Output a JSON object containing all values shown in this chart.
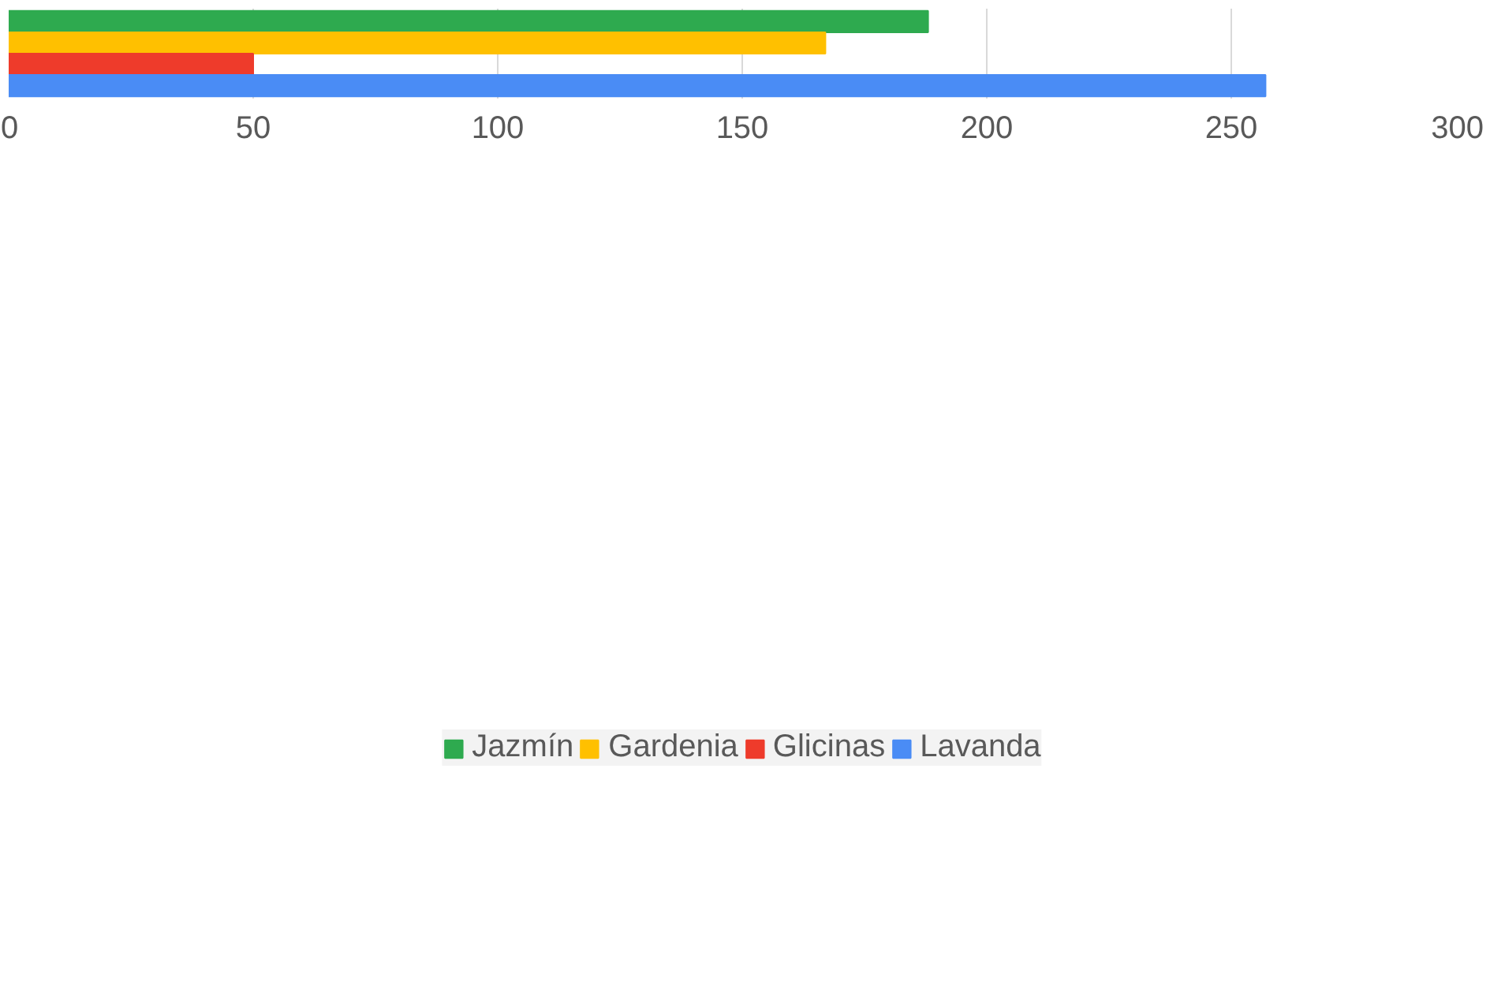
{
  "chart_data": {
    "type": "bar",
    "orientation": "horizontal",
    "categories": [
      null
    ],
    "series": [
      {
        "name": "Jazmín",
        "color": "#2eaa4f",
        "values": [
          188
        ]
      },
      {
        "name": "Gardenia",
        "color": "#ffc000",
        "values": [
          167
        ]
      },
      {
        "name": "Glicinas",
        "color": "#ee3b2b",
        "values": [
          50
        ]
      },
      {
        "name": "Lavanda",
        "color": "#4a8cf5",
        "values": [
          257
        ]
      }
    ],
    "xlim": [
      0,
      300
    ],
    "xticks": [
      0,
      50,
      100,
      150,
      200,
      250,
      300
    ],
    "grid": "x",
    "legend": "bottom"
  }
}
